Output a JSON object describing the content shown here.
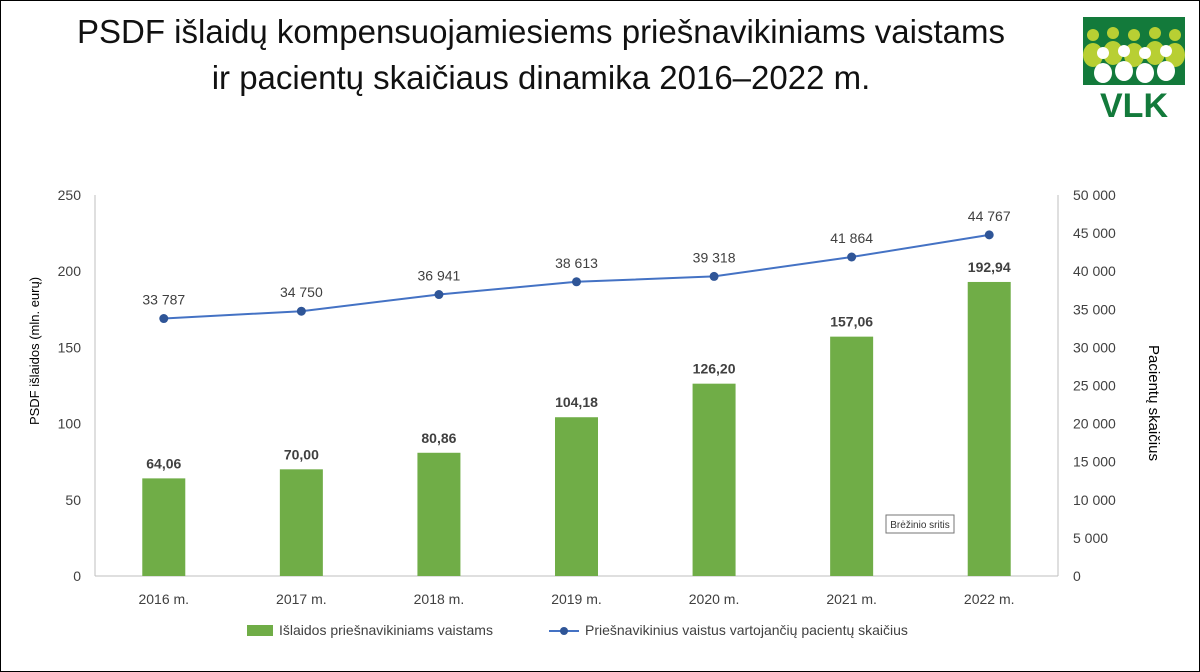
{
  "title": {
    "line1": "PSDF išlaidų kompensuojamiesiems priešnavikiniams vaistams",
    "line2": "ir pacientų skaičiaus dinamika 2016–2022 m."
  },
  "logo": {
    "text": "VLK",
    "color": "#137a3b",
    "accent": "#b8cf33"
  },
  "tooltip": "Brėžinio sritis",
  "chart_data": {
    "type": "bar+line",
    "categories": [
      "2016 m.",
      "2017 m.",
      "2018 m.",
      "2019 m.",
      "2020 m.",
      "2021 m.",
      "2022 m."
    ],
    "series": [
      {
        "name": "Išlaidos priešnavikiniams vaistams",
        "type": "bar",
        "axis": "left",
        "color": "#70ad47",
        "values": [
          64.06,
          70.0,
          80.86,
          104.18,
          126.2,
          157.06,
          192.94
        ],
        "labels": [
          "64,06",
          "70,00",
          "80,86",
          "104,18",
          "126,20",
          "157,06",
          "192,94"
        ]
      },
      {
        "name": "Priešnavikinius vaistus vartojančių pacientų skaičius",
        "type": "line",
        "axis": "right",
        "color": "#4472c4",
        "marker_color": "#2f5597",
        "values": [
          33787,
          34750,
          36941,
          38613,
          39318,
          41864,
          44767
        ],
        "labels": [
          "33 787",
          "34 750",
          "36 941",
          "38 613",
          "39 318",
          "41 864",
          "44 767"
        ]
      }
    ],
    "y_left": {
      "label": "PSDF išlaidos (mln. eurų)",
      "min": 0,
      "max": 250,
      "ticks": [
        0,
        50,
        100,
        150,
        200,
        250
      ],
      "tick_labels": [
        "0",
        "50",
        "100",
        "150",
        "200",
        "250"
      ]
    },
    "y_right": {
      "label": "Pacientų skaičius",
      "min": 0,
      "max": 50000,
      "ticks": [
        0,
        5000,
        10000,
        15000,
        20000,
        25000,
        30000,
        35000,
        40000,
        45000,
        50000
      ],
      "tick_labels": [
        "0",
        "5 000",
        "10 000",
        "15 000",
        "20 000",
        "25 000",
        "30 000",
        "35 000",
        "40 000",
        "45 000",
        "50 000"
      ]
    },
    "grid": false,
    "legend": "bottom"
  }
}
